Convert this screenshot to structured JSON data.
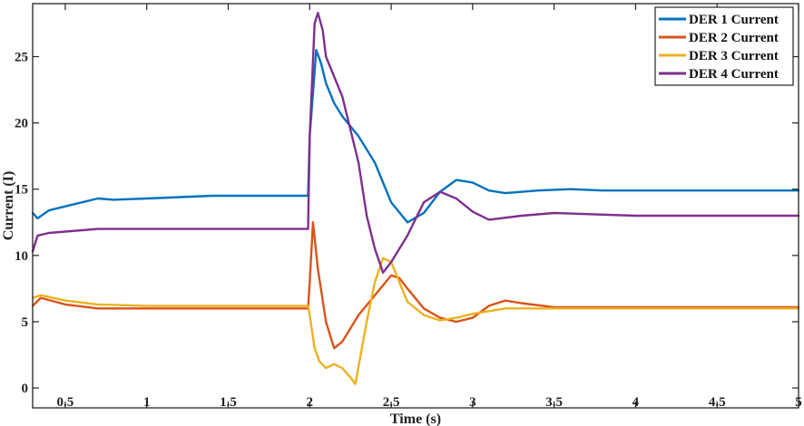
{
  "chart_data": {
    "type": "line",
    "title": "",
    "xlabel": "Time (s)",
    "ylabel": "Current (I)",
    "xlim": [
      0.3,
      5
    ],
    "ylim": [
      -1.5,
      29
    ],
    "x_ticks": [
      0.5,
      1,
      1.5,
      2,
      2.5,
      3,
      3.5,
      4,
      4.5,
      5
    ],
    "x_tick_labels": [
      "0.5",
      "1",
      "1.5",
      "2",
      "2.5",
      "3",
      "3.5",
      "4",
      "4.5",
      "5"
    ],
    "y_ticks": [
      0,
      5,
      10,
      15,
      20,
      25
    ],
    "y_tick_labels": [
      "0",
      "5",
      "10",
      "15",
      "20",
      "25"
    ],
    "grid": false,
    "legend_position": "top-right",
    "series": [
      {
        "name": "DER 1 Current",
        "color": "#0072BD",
        "x": [
          0.3,
          0.33,
          0.4,
          0.5,
          0.6,
          0.7,
          0.8,
          1.0,
          1.2,
          1.4,
          1.6,
          1.8,
          1.99,
          2.0,
          2.04,
          2.07,
          2.1,
          2.15,
          2.2,
          2.3,
          2.4,
          2.5,
          2.6,
          2.7,
          2.8,
          2.9,
          3.0,
          3.1,
          3.2,
          3.4,
          3.6,
          3.8,
          4.0,
          4.5,
          5.0
        ],
        "y": [
          13.2,
          12.8,
          13.4,
          13.7,
          14.0,
          14.3,
          14.2,
          14.3,
          14.4,
          14.5,
          14.5,
          14.5,
          14.5,
          19.0,
          25.5,
          24.5,
          23.0,
          21.5,
          20.5,
          19.0,
          17.0,
          14.0,
          12.5,
          13.2,
          14.8,
          15.7,
          15.5,
          14.9,
          14.7,
          14.9,
          15.0,
          14.9,
          14.9,
          14.9,
          14.9
        ]
      },
      {
        "name": "DER 2 Current",
        "color": "#D95319",
        "x": [
          0.3,
          0.35,
          0.5,
          0.7,
          1.0,
          1.5,
          1.99,
          2.0,
          2.02,
          2.05,
          2.1,
          2.15,
          2.2,
          2.25,
          2.3,
          2.4,
          2.5,
          2.55,
          2.6,
          2.7,
          2.8,
          2.9,
          3.0,
          3.1,
          3.2,
          3.3,
          3.5,
          4.0,
          4.5,
          5.0
        ],
        "y": [
          6.2,
          6.8,
          6.3,
          6.0,
          6.0,
          6.0,
          6.0,
          8.0,
          12.5,
          9.0,
          5.0,
          3.0,
          3.5,
          4.5,
          5.5,
          7.0,
          8.5,
          8.3,
          7.5,
          6.0,
          5.3,
          5.0,
          5.3,
          6.2,
          6.6,
          6.4,
          6.1,
          6.1,
          6.1,
          6.1
        ]
      },
      {
        "name": "DER 3 Current",
        "color": "#EDB120",
        "x": [
          0.3,
          0.35,
          0.5,
          0.7,
          1.0,
          1.5,
          1.99,
          2.0,
          2.03,
          2.06,
          2.1,
          2.15,
          2.2,
          2.25,
          2.28,
          2.35,
          2.4,
          2.45,
          2.5,
          2.55,
          2.6,
          2.7,
          2.8,
          2.9,
          3.0,
          3.1,
          3.2,
          3.3,
          3.5,
          4.0,
          4.5,
          5.0
        ],
        "y": [
          6.8,
          7.0,
          6.6,
          6.3,
          6.2,
          6.2,
          6.2,
          5.5,
          3.0,
          2.0,
          1.5,
          1.8,
          1.5,
          0.8,
          0.3,
          5.0,
          8.0,
          9.8,
          9.5,
          8.0,
          6.5,
          5.5,
          5.1,
          5.3,
          5.6,
          5.8,
          6.0,
          6.0,
          6.0,
          6.0,
          6.0,
          6.0
        ]
      },
      {
        "name": "DER 4 Current",
        "color": "#7E2F8E",
        "x": [
          0.3,
          0.33,
          0.4,
          0.5,
          0.7,
          1.0,
          1.5,
          1.99,
          2.0,
          2.03,
          2.05,
          2.08,
          2.1,
          2.2,
          2.3,
          2.35,
          2.4,
          2.45,
          2.5,
          2.6,
          2.7,
          2.8,
          2.9,
          3.0,
          3.1,
          3.3,
          3.5,
          4.0,
          4.5,
          5.0
        ],
        "y": [
          10.3,
          11.5,
          11.7,
          11.8,
          12.0,
          12.0,
          12.0,
          12.0,
          19.0,
          27.5,
          28.3,
          27.0,
          25.0,
          22.0,
          17.0,
          13.0,
          10.5,
          8.7,
          9.5,
          11.5,
          14.0,
          14.8,
          14.3,
          13.3,
          12.7,
          13.0,
          13.2,
          13.0,
          13.0,
          13.0
        ]
      }
    ]
  }
}
